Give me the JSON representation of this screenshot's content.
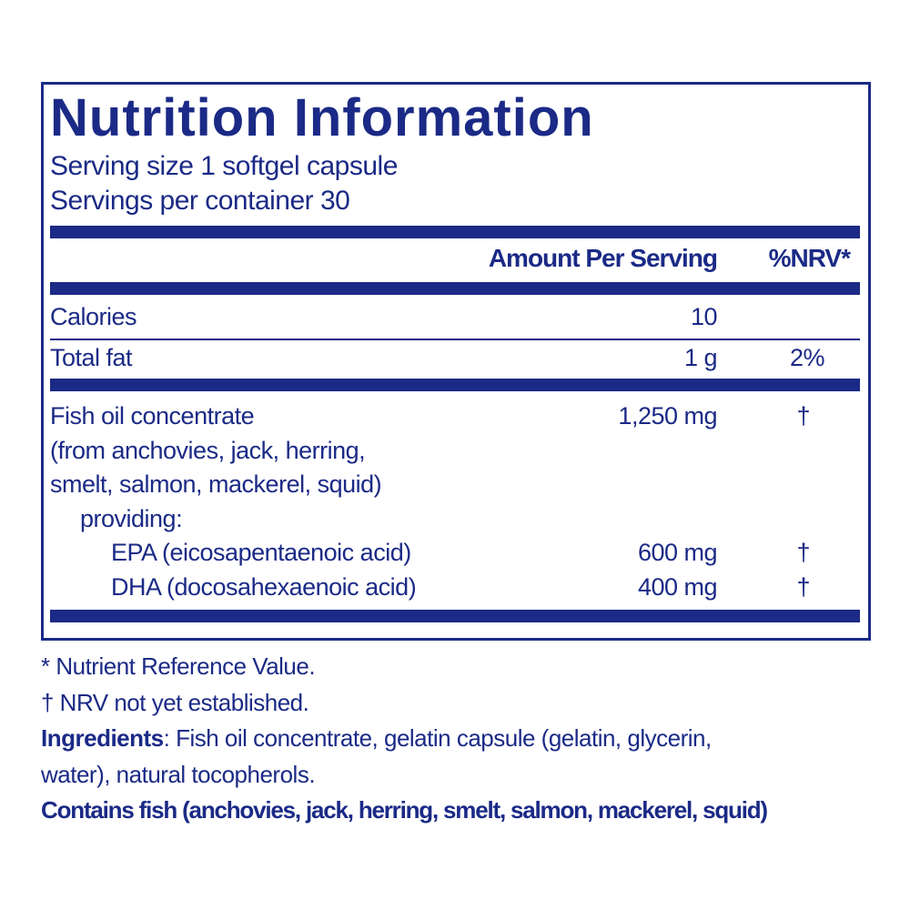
{
  "title": "Nutrition Information",
  "serving_size": "Serving size  1 softgel capsule",
  "servings_per_container": "Servings per container  30",
  "columns": {
    "amount": "Amount Per Serving",
    "nrv": "%NRV*"
  },
  "rows": [
    {
      "label": "Calories",
      "amount": "10",
      "nrv": ""
    },
    {
      "label": "Total fat",
      "amount": "1 g",
      "nrv": "2%"
    },
    {
      "label": "Fish oil concentrate",
      "amount": "1,250 mg",
      "nrv": "†"
    }
  ],
  "fish_oil_sources": [
    "(from anchovies, jack, herring,",
    "smelt, salmon, mackerel, squid)"
  ],
  "providing": "providing:",
  "sub_rows": [
    {
      "label": "EPA (eicosapentaenoic acid)",
      "amount": "600 mg",
      "nrv": "†"
    },
    {
      "label": "DHA (docosahexaenoic acid)",
      "amount": "400 mg",
      "nrv": "†"
    }
  ],
  "footnotes": {
    "nrv": "* Nutrient Reference Value.",
    "dagger": "† NRV not yet established.",
    "ingredients_label": "Ingredients",
    "ingredients_text_1": ": Fish oil concentrate, gelatin capsule (gelatin, glycerin,",
    "ingredients_text_2": "water), natural tocopherols.",
    "allergen": "Contains fish (anchovies, jack, herring, smelt, salmon, mackerel, squid)"
  },
  "colors": {
    "navy": "#1b2a86",
    "background": "#ffffff"
  }
}
